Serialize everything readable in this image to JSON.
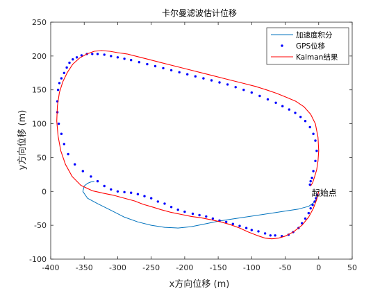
{
  "chart_data": {
    "type": "line",
    "title": "卡尔曼滤波估计位移",
    "xlabel": "x方向位移 (m)",
    "ylabel": "y方向位移 (m)",
    "xlim": [
      -400,
      50
    ],
    "ylim": [
      -100,
      250
    ],
    "xticks": [
      -400,
      -350,
      -300,
      -250,
      -200,
      -150,
      -100,
      -50,
      0,
      50
    ],
    "yticks": [
      -100,
      -50,
      0,
      50,
      100,
      150,
      200,
      250
    ],
    "grid": false,
    "legend_position": "top-right",
    "annotation": {
      "text": "起始点",
      "x": 0,
      "y": 0
    },
    "series": [
      {
        "name": "加速度积分",
        "style": "line",
        "color": "#0072BD",
        "x": [
          0,
          -5,
          -15,
          -30,
          -50,
          -70,
          -90,
          -110,
          -130,
          -150,
          -170,
          -190,
          -210,
          -230,
          -250,
          -270,
          -290,
          -310,
          -330,
          -345,
          -352,
          -350,
          -345,
          -340,
          -335
        ],
        "y": [
          0,
          -15,
          -22,
          -26,
          -29,
          -32,
          -35,
          -38,
          -41,
          -44,
          -48,
          -52,
          -54,
          -53,
          -50,
          -45,
          -38,
          -28,
          -18,
          -10,
          0,
          8,
          12,
          14,
          15
        ]
      },
      {
        "name": "GPS位移",
        "style": "dots",
        "color": "#0000FF",
        "x": [
          -2,
          -4,
          -6,
          -9,
          -12,
          -15,
          -20,
          -25,
          -30,
          -38,
          -45,
          -55,
          -65,
          -72,
          -80,
          -90,
          -100,
          -108,
          -118,
          -128,
          -138,
          -148,
          -158,
          -168,
          -178,
          -188,
          -200,
          -210,
          -220,
          -230,
          -240,
          -250,
          -260,
          -270,
          -280,
          -290,
          -300,
          -310,
          -320,
          -330,
          -340,
          -352,
          -364,
          -374,
          -380,
          -384,
          -388,
          -390,
          -390,
          -389,
          -387,
          -384,
          -380,
          -376,
          -372,
          -367,
          -361,
          -354,
          -346,
          -338,
          -330,
          -320,
          -310,
          -300,
          -290,
          -280,
          -268,
          -256,
          -244,
          -232,
          -220,
          -208,
          -196,
          -184,
          -172,
          -160,
          -148,
          -136,
          -124,
          -112,
          -100,
          -88,
          -76,
          -64,
          -54,
          -44,
          -35,
          -27,
          -20,
          -13,
          -8,
          -5,
          -3,
          -5,
          -8,
          -10,
          -12,
          -13
        ],
        "y": [
          -5,
          -10,
          -15,
          -20,
          -25,
          -32,
          -40,
          -47,
          -54,
          -60,
          -64,
          -66,
          -65,
          -65,
          -62,
          -59,
          -57,
          -54,
          -51,
          -48,
          -45,
          -43,
          -40,
          -37,
          -35,
          -33,
          -30,
          -27,
          -23,
          -18,
          -15,
          -10,
          -7,
          -4,
          -2,
          -1,
          0,
          3,
          8,
          15,
          22,
          30,
          40,
          55,
          70,
          85,
          100,
          117,
          133,
          150,
          160,
          167,
          175,
          183,
          190,
          195,
          198,
          201,
          203,
          203,
          203,
          202,
          200,
          198,
          196,
          194,
          191,
          188,
          185,
          182,
          179,
          176,
          173,
          170,
          167,
          164,
          161,
          158,
          154,
          150,
          146,
          141,
          136,
          131,
          126,
          121,
          116,
          110,
          104,
          95,
          85,
          75,
          60,
          45,
          30,
          20,
          15,
          10
        ],
        "ellipsis_note": "",
        "count_hint": ""
      },
      {
        "name": "Kalman结果",
        "style": "line",
        "color": "#FF0000",
        "x": [
          0,
          -3,
          -8,
          -15,
          -25,
          -38,
          -50,
          -60,
          -70,
          -80,
          -92,
          -105,
          -118,
          -132,
          -146,
          -160,
          -175,
          -190,
          -205,
          -220,
          -235,
          -248,
          -262,
          -275,
          -290,
          -305,
          -320,
          -338,
          -355,
          -368,
          -378,
          -385,
          -389,
          -391,
          -390,
          -387,
          -382,
          -375,
          -367,
          -357,
          -346,
          -335,
          -324,
          -312,
          -300,
          -286,
          -270,
          -254,
          -238,
          -222,
          -206,
          -190,
          -174,
          -158,
          -142,
          -126,
          -110,
          -94,
          -78,
          -63,
          -48,
          -34,
          -22,
          -12,
          -5,
          -1,
          0,
          -1,
          -3,
          -6,
          -9,
          -12
        ],
        "y": [
          0,
          -12,
          -25,
          -38,
          -50,
          -60,
          -66,
          -69,
          -70,
          -69,
          -65,
          -60,
          -54,
          -49,
          -45,
          -42,
          -39,
          -37,
          -34,
          -31,
          -27,
          -23,
          -19,
          -14,
          -10,
          -6,
          -3,
          1,
          9,
          22,
          40,
          60,
          82,
          104,
          126,
          146,
          162,
          176,
          188,
          197,
          203,
          207,
          208,
          207,
          205,
          203,
          199,
          195,
          191,
          187,
          183,
          179,
          175,
          171,
          167,
          163,
          159,
          155,
          150,
          145,
          139,
          133,
          125,
          114,
          100,
          80,
          60,
          45,
          32,
          22,
          13,
          8
        ]
      }
    ]
  }
}
